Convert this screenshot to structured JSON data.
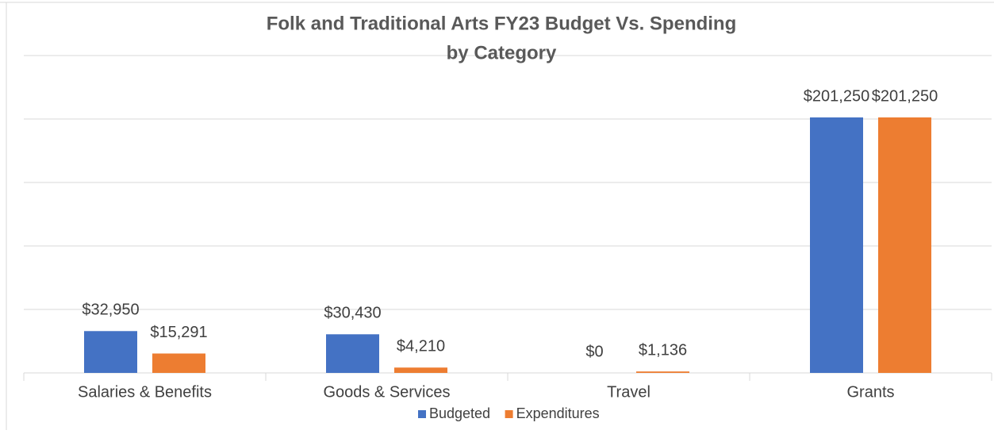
{
  "chart_data": {
    "type": "bar",
    "title": [
      "Folk and Traditional Arts FY23 Budget Vs. Spending",
      "by Category"
    ],
    "categories": [
      "Salaries & Benefits",
      "Goods & Services",
      "Travel",
      "Grants"
    ],
    "series": [
      {
        "name": "Budgeted",
        "color": "#4472c4",
        "values": [
          32950,
          30430,
          0,
          201250
        ],
        "value_labels": [
          "$32,950",
          "$30,430",
          "$0",
          "$201,250"
        ]
      },
      {
        "name": "Expenditures",
        "color": "#ed7d31",
        "values": [
          15291,
          4210,
          1136,
          201250
        ],
        "value_labels": [
          "$15,291",
          "$4,210",
          "$1,136",
          "$201,250"
        ]
      }
    ],
    "ylim": [
      0,
      250000
    ],
    "yticks": [
      0,
      50000,
      100000,
      150000,
      200000,
      250000
    ],
    "grid": true,
    "legend": "bottom"
  }
}
